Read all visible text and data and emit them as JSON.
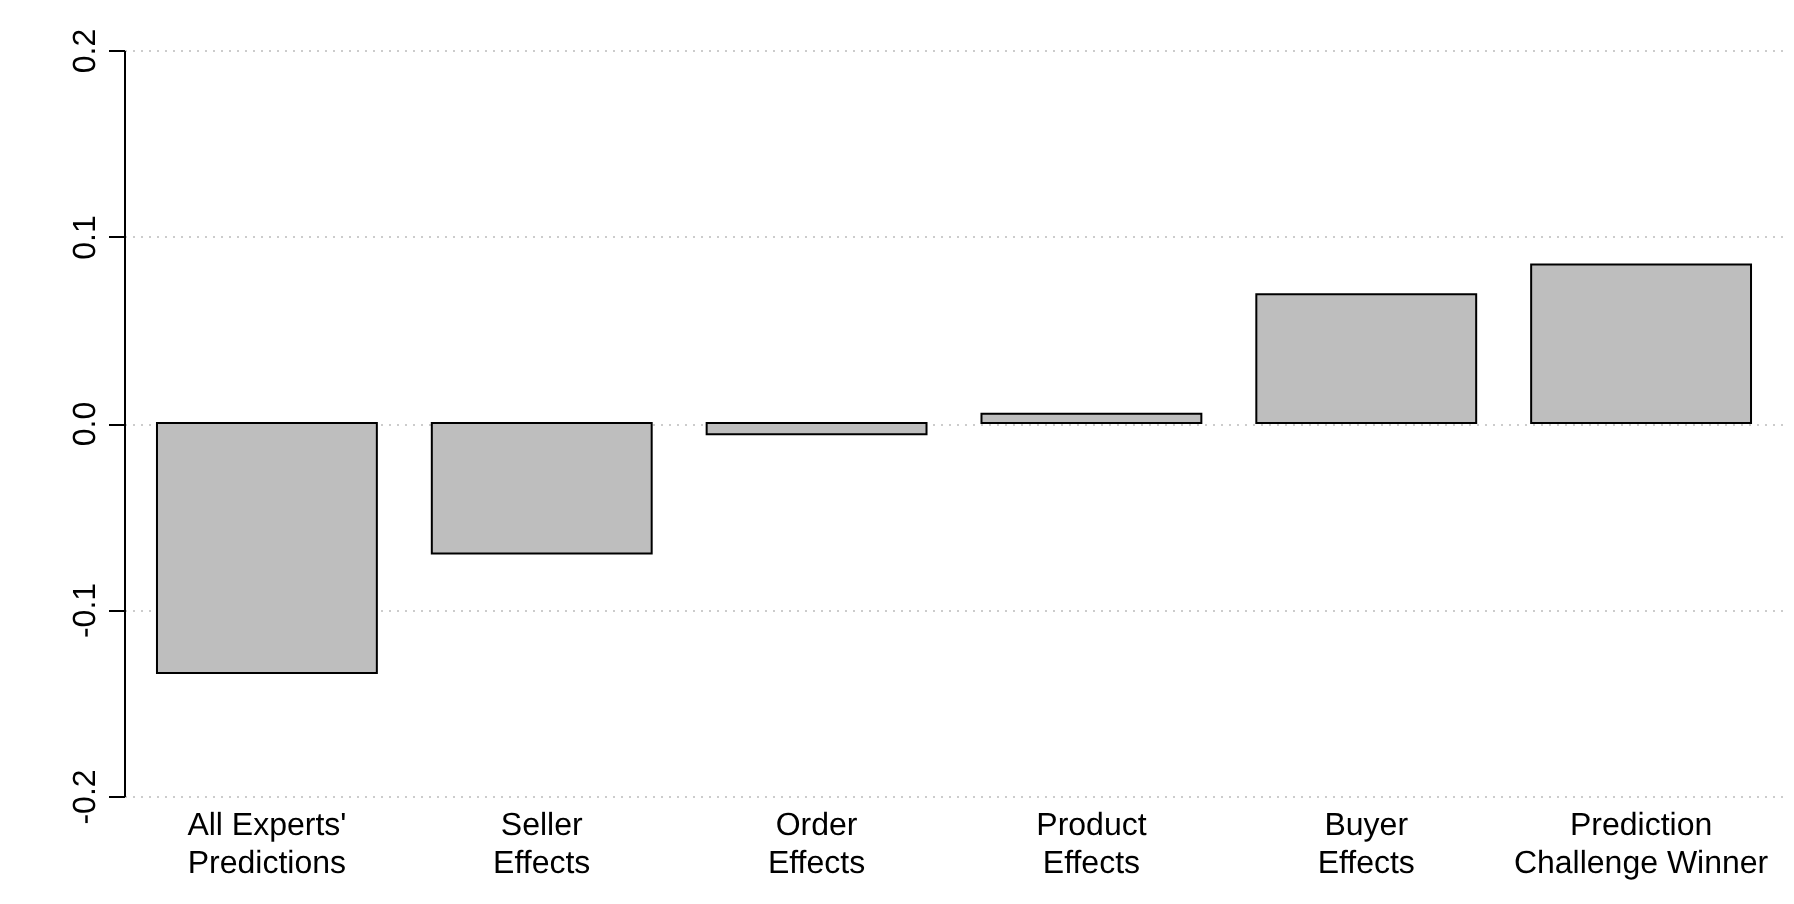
{
  "chart_data": {
    "type": "bar",
    "categories": [
      "All Experts'\nPredictions",
      "Seller\nEffects",
      "Order\nEffects",
      "Product\nEffects",
      "Buyer\nEffects",
      "Prediction\nChallenge Winner"
    ],
    "values": [
      -0.134,
      -0.07,
      -0.006,
      0.005,
      0.069,
      0.085
    ],
    "color": "#bebebe",
    "ylim": [
      -0.2,
      0.2
    ],
    "yticks": [
      {
        "value": -0.2,
        "label": "-0.2"
      },
      {
        "value": -0.1,
        "label": "-0.1"
      },
      {
        "value": 0,
        "label": "0.0"
      },
      {
        "value": 0.1,
        "label": "0.1"
      },
      {
        "value": 0.2,
        "label": "0.2"
      }
    ],
    "grid": "y"
  }
}
